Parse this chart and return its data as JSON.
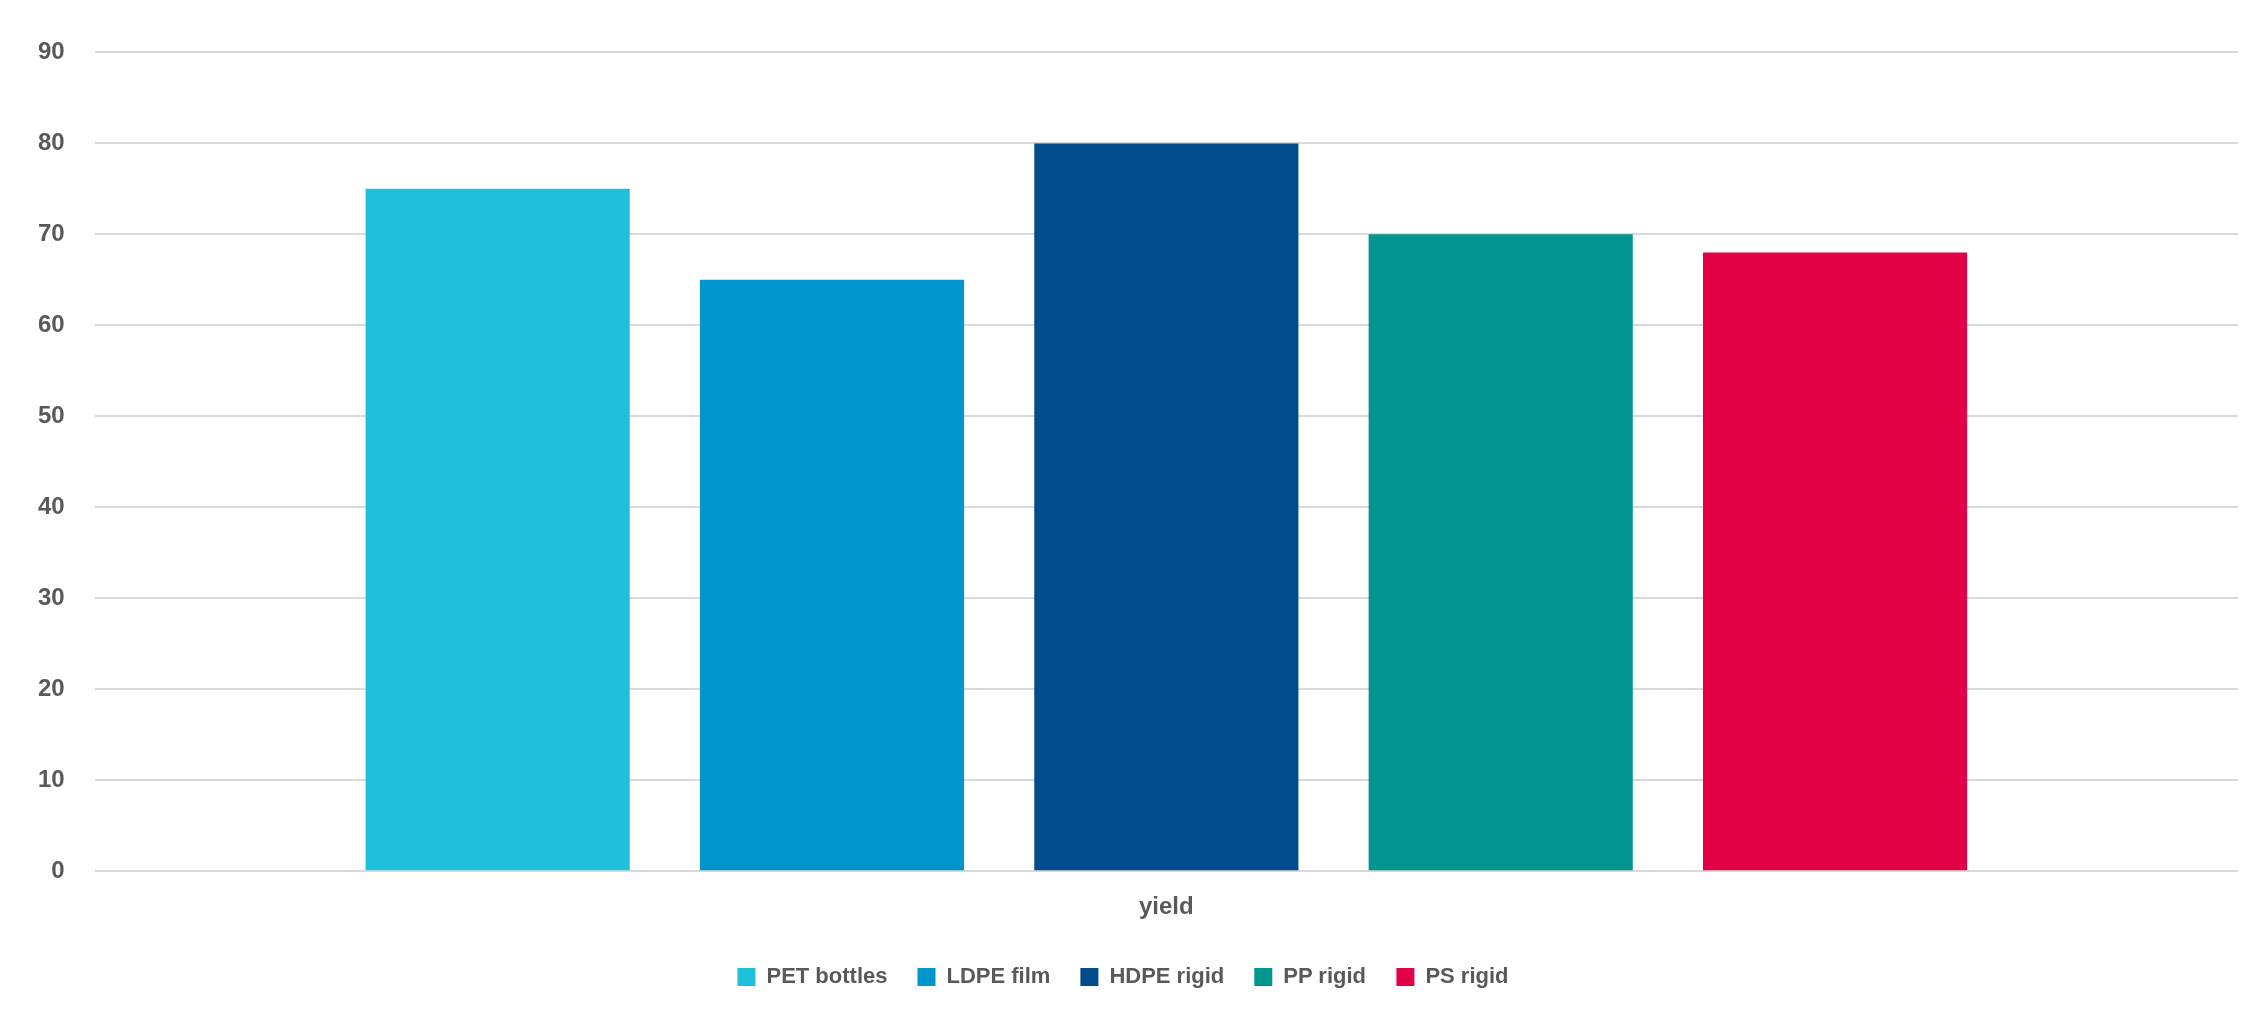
{
  "chart_data": {
    "type": "bar",
    "categories": [
      "yield"
    ],
    "series": [
      {
        "name": "PET bottles",
        "color": "#1fc0dc",
        "values": [
          75
        ]
      },
      {
        "name": "LDPE film",
        "color": "#0095cd",
        "values": [
          65
        ]
      },
      {
        "name": "HDPE rigid",
        "color": "#004c8d",
        "values": [
          80
        ]
      },
      {
        "name": "PP rigid",
        "color": "#00958f",
        "values": [
          70
        ]
      },
      {
        "name": "PS rigid",
        "color": "#e20046",
        "values": [
          68
        ]
      }
    ],
    "ylim": [
      0,
      90
    ],
    "yticks": [
      0,
      10,
      20,
      30,
      40,
      50,
      60,
      70,
      80,
      90
    ],
    "grid": "y",
    "legend": "bottom"
  }
}
